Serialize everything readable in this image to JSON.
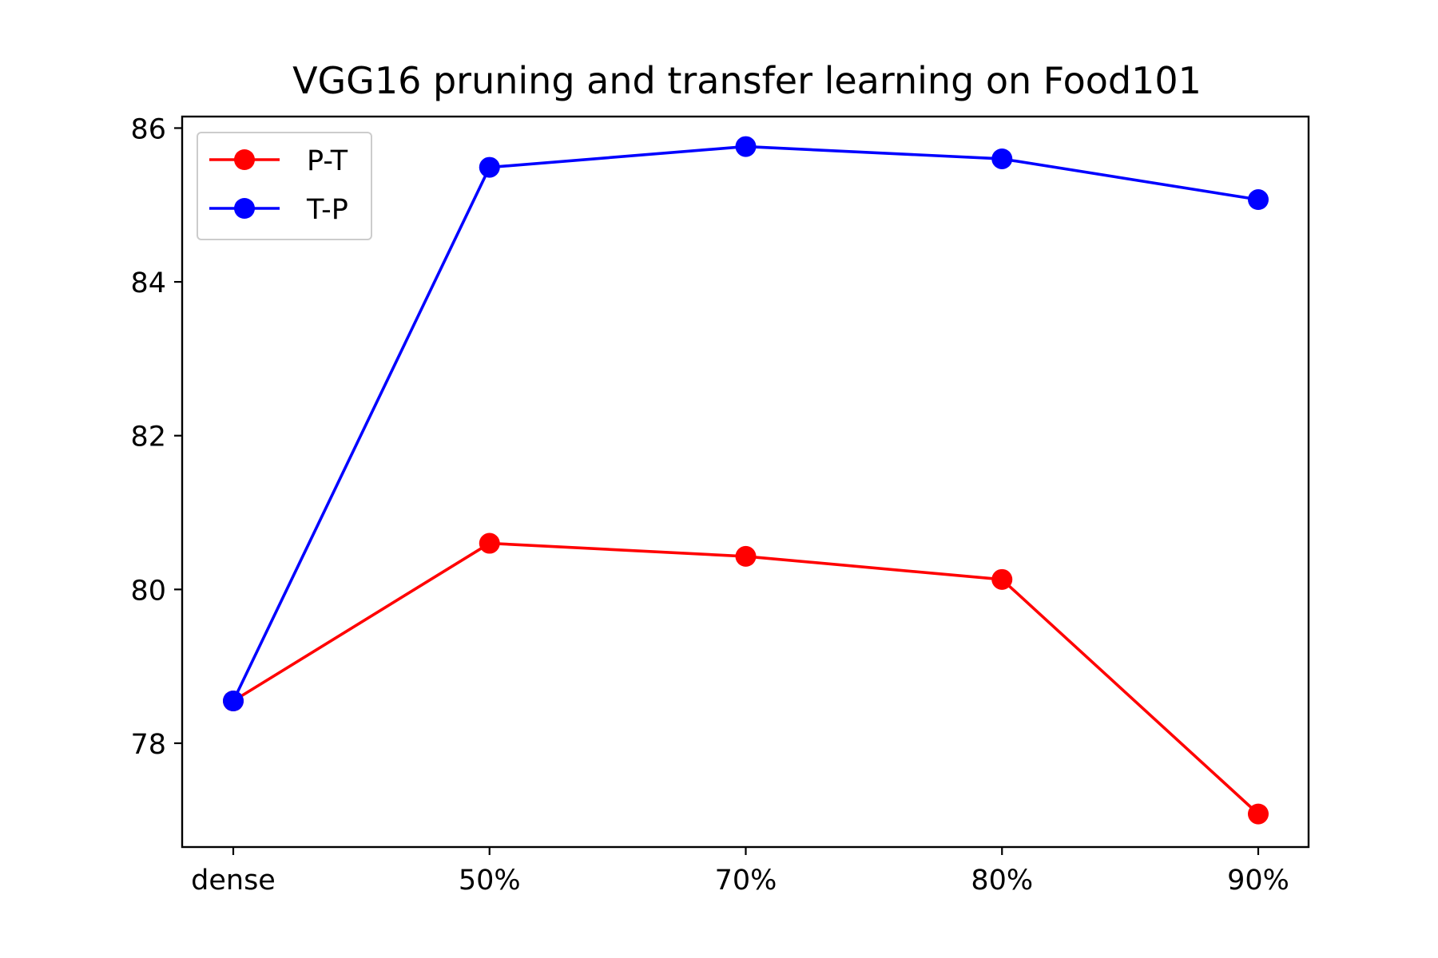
{
  "chart_data": {
    "type": "line",
    "title": "VGG16 pruning and transfer learning on Food101",
    "xlabel": "",
    "ylabel": "",
    "categories": [
      "dense",
      "50%",
      "70%",
      "80%",
      "90%"
    ],
    "ylim": [
      76.65,
      86.15
    ],
    "yticks": [
      78,
      80,
      82,
      84,
      86
    ],
    "grid": false,
    "legend_position": "top-left",
    "series": [
      {
        "name": "P-T",
        "color": "#ff0000",
        "marker": "circle",
        "values": [
          78.55,
          80.6,
          80.43,
          80.13,
          77.08
        ]
      },
      {
        "name": "T-P",
        "color": "#0000ff",
        "marker": "circle",
        "values": [
          78.55,
          85.49,
          85.76,
          85.6,
          85.07
        ]
      }
    ]
  }
}
